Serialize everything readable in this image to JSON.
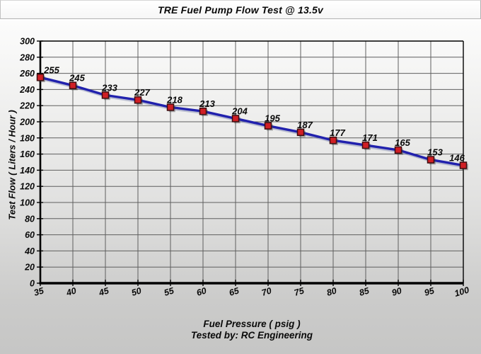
{
  "window": {
    "title": "TRE Fuel Pump Flow Test @ 13.5v"
  },
  "chart_data": {
    "type": "line",
    "title": "TRE Fuel Pump Flow Test @ 13.5v",
    "x": [
      35,
      40,
      45,
      50,
      55,
      60,
      65,
      70,
      75,
      80,
      85,
      90,
      95,
      100
    ],
    "values": [
      255,
      245,
      233,
      227,
      218,
      213,
      204,
      195,
      187,
      177,
      171,
      165,
      153,
      146
    ],
    "point_labels": [
      "255",
      "245",
      "233",
      "227",
      "218",
      "213",
      "204",
      "195",
      "187",
      "177",
      "171",
      "165",
      "153",
      "146"
    ],
    "xlabel": "Fuel Pressure ( psig )",
    "ylabel": "Test Flow ( Liters / Hour )",
    "footer": "Tested by: RC Engineering",
    "xlim": [
      35,
      100
    ],
    "ylim": [
      0,
      300
    ],
    "xtick_step": 5,
    "ytick_step": 20,
    "grid": true,
    "legend_position": "none",
    "marker_shape": "square",
    "colors": {
      "line": "#2121ad",
      "line_shadow": "#8d93b8",
      "marker_fill": "#d01f25",
      "marker_border": "#3c0d10",
      "grid": "#5f5f5f",
      "axis": "#000000",
      "text": "#0a0a0a"
    }
  }
}
